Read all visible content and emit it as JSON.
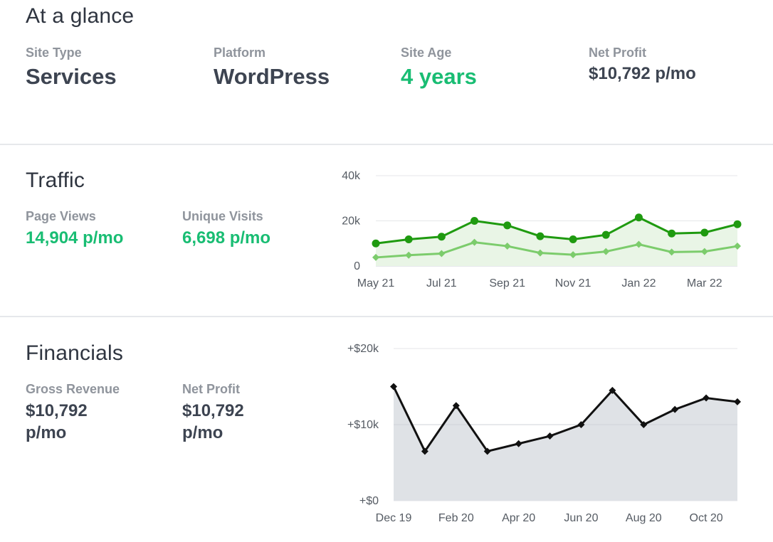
{
  "glance": {
    "title": "At a glance",
    "site_type": {
      "label": "Site Type",
      "value": "Services"
    },
    "platform": {
      "label": "Platform",
      "value": "WordPress"
    },
    "site_age": {
      "label": "Site Age",
      "value": "4 years"
    },
    "net_profit": {
      "label": "Net Profit",
      "value": "$10,792 p/mo"
    }
  },
  "traffic": {
    "title": "Traffic",
    "page_views": {
      "label": "Page Views",
      "value": "14,904 p/mo"
    },
    "unique_visits": {
      "label": "Unique Visits",
      "value": "6,698 p/mo"
    }
  },
  "financials": {
    "title": "Financials",
    "gross_revenue": {
      "label": "Gross Revenue",
      "value_line1": "$10,792",
      "value_line2": "p/mo"
    },
    "net_profit": {
      "label": "Net Profit",
      "value_line1": "$10,792",
      "value_line2": "p/mo"
    }
  },
  "colors": {
    "accent_green": "#19bd73",
    "page_views_line": "#1f9a10",
    "unique_visits_line": "#7ccc6c",
    "financial_line": "#111111",
    "financial_area": "#dfe2e6"
  },
  "chart_data": [
    {
      "type": "line",
      "name": "traffic-chart",
      "x_ticks": [
        "May 21",
        "Jul 21",
        "Sep 21",
        "Nov 21",
        "Jan 22",
        "Mar 22"
      ],
      "y_ticks": [
        "40k",
        "20k",
        "0"
      ],
      "ylim": [
        0,
        40000
      ],
      "grid": true,
      "series": [
        {
          "values": [
            10000,
            11800,
            13000,
            20000,
            18000,
            13200,
            11800,
            13800,
            21500,
            14400,
            14800,
            18500
          ]
        },
        {
          "values": [
            3800,
            4800,
            5500,
            10500,
            8800,
            5800,
            5000,
            6400,
            9600,
            6200,
            6400,
            8800
          ]
        }
      ]
    },
    {
      "type": "area",
      "name": "financials-chart",
      "x_ticks": [
        "Dec 19",
        "Feb 20",
        "Apr 20",
        "Jun 20",
        "Aug 20",
        "Oct 20"
      ],
      "y_ticks": [
        "+$20k",
        "+$10k",
        "+$0"
      ],
      "ylim": [
        0,
        20000
      ],
      "grid": true,
      "series": [
        {
          "values": [
            15000,
            6500,
            12500,
            6500,
            7500,
            8500,
            10000,
            14500,
            10000,
            12000,
            13500,
            13000
          ]
        }
      ]
    }
  ]
}
